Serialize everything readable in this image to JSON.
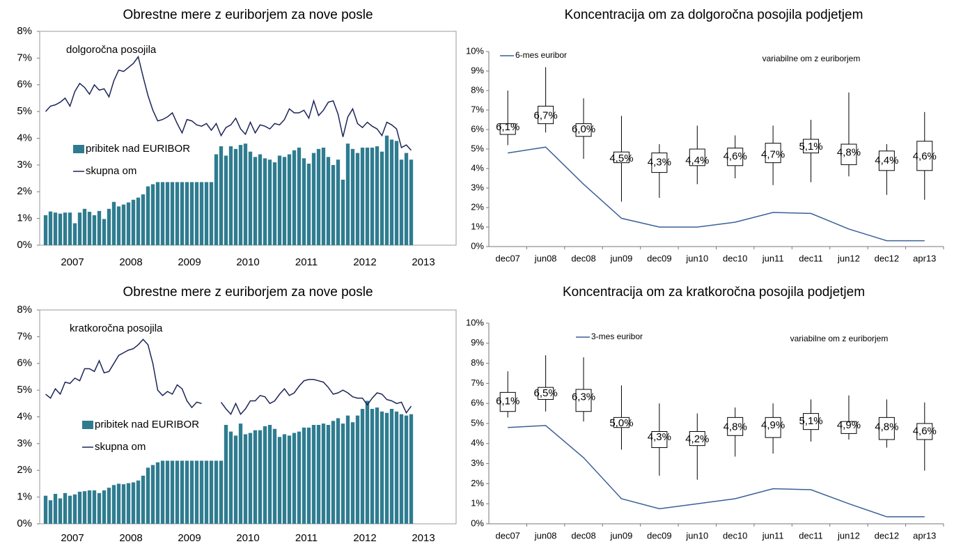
{
  "chart_data": [
    {
      "type": "combo",
      "title": "Obrestne mere z euriborjem za nove posle",
      "annotation": "dolgoročna posojila",
      "categories": [
        null,
        null,
        null,
        null,
        null,
        null,
        "2007",
        null,
        null,
        null,
        null,
        null,
        null,
        null,
        null,
        null,
        null,
        null,
        "2008",
        null,
        null,
        null,
        null,
        null,
        null,
        null,
        null,
        null,
        null,
        null,
        "2009",
        null,
        null,
        null,
        null,
        null,
        null,
        null,
        null,
        null,
        null,
        null,
        "2010",
        null,
        null,
        null,
        null,
        null,
        null,
        null,
        null,
        null,
        null,
        null,
        "2011",
        null,
        null,
        null,
        null,
        null,
        null,
        null,
        null,
        null,
        null,
        null,
        "2012",
        null,
        null,
        null,
        null,
        null,
        null,
        null,
        null,
        null,
        null,
        null,
        "2013",
        null,
        null,
        null,
        null,
        null
      ],
      "series": [
        {
          "name": "pribitek nad EURIBOR",
          "type": "bar",
          "color": "#2f7c90",
          "values": [
            1.12,
            1.26,
            1.22,
            1.18,
            1.22,
            1.22,
            0.82,
            1.22,
            1.36,
            1.25,
            1.12,
            1.28,
            0.98,
            1.36,
            1.62,
            1.45,
            1.52,
            1.6,
            1.7,
            1.78,
            1.9,
            2.2,
            2.28,
            2.36,
            2.36,
            2.36,
            2.36,
            2.36,
            2.36,
            2.36,
            2.36,
            2.36,
            2.36,
            2.36,
            2.36,
            3.4,
            3.7,
            3.35,
            3.7,
            3.6,
            3.75,
            3.8,
            3.5,
            3.3,
            3.4,
            3.25,
            3.2,
            3.1,
            3.35,
            3.3,
            3.4,
            3.55,
            3.65,
            3.25,
            3.05,
            3.45,
            3.6,
            3.65,
            3.3,
            3.0,
            3.2,
            2.45,
            3.8,
            3.6,
            3.45,
            3.65,
            3.65,
            3.65,
            3.7,
            3.5,
            4.1,
            3.95,
            3.9,
            3.2,
            3.45,
            3.2,
            null,
            null,
            null,
            null,
            null,
            null,
            null,
            null
          ]
        },
        {
          "name": "skupna om",
          "type": "line",
          "color": "#1c2557",
          "values": [
            5.0,
            5.2,
            5.25,
            5.35,
            5.5,
            5.2,
            5.75,
            6.05,
            5.9,
            5.65,
            6.0,
            5.8,
            5.85,
            5.55,
            6.15,
            6.55,
            6.5,
            6.65,
            6.8,
            7.05,
            6.3,
            5.6,
            5.05,
            4.65,
            4.7,
            4.8,
            4.95,
            4.55,
            4.2,
            4.7,
            4.65,
            4.5,
            4.45,
            4.55,
            4.3,
            4.55,
            4.1,
            4.4,
            4.5,
            4.75,
            4.35,
            4.15,
            4.6,
            4.2,
            4.5,
            4.45,
            4.35,
            4.55,
            4.5,
            4.7,
            5.1,
            4.95,
            4.95,
            5.05,
            4.75,
            5.4,
            4.85,
            5.05,
            5.35,
            5.4,
            4.9,
            4.05,
            4.8,
            5.1,
            4.55,
            4.4,
            4.6,
            4.45,
            4.35,
            4.1,
            4.6,
            4.5,
            4.35,
            3.65,
            3.75,
            3.55,
            null,
            null,
            null,
            null,
            null,
            null,
            null,
            null
          ]
        }
      ],
      "ylim": [
        0,
        8
      ],
      "yticks": [
        {
          "value": 0,
          "label": "0%"
        },
        {
          "value": 1,
          "label": "1%"
        },
        {
          "value": 2,
          "label": "2%"
        },
        {
          "value": 3,
          "label": "3%"
        },
        {
          "value": 4,
          "label": "4%"
        },
        {
          "value": 5,
          "label": "5%"
        },
        {
          "value": 6,
          "label": "6%"
        },
        {
          "value": 7,
          "label": "7%"
        },
        {
          "value": 8,
          "label": "8%"
        }
      ]
    },
    {
      "type": "box",
      "title": "Koncentracija om za dolgoročna posojila podjetjem",
      "annotation": "variabilne om z euriborjem",
      "categories": [
        "dec07",
        "jun08",
        "dec08",
        "jun09",
        "dec09",
        "jun10",
        "dec10",
        "jun11",
        "dec11",
        "jun12",
        "dec12",
        "apr13"
      ],
      "series": [
        {
          "name": "6-mes euribor",
          "color": "#3b5f98",
          "values": [
            4.8,
            5.1,
            3.2,
            1.45,
            1.0,
            1.0,
            1.25,
            1.75,
            1.7,
            0.9,
            0.3,
            0.3
          ]
        }
      ],
      "boxes": {
        "whisker_low": [
          5.2,
          5.85,
          4.5,
          2.3,
          2.5,
          3.2,
          3.5,
          3.15,
          3.3,
          3.6,
          2.65,
          2.4
        ],
        "box_low": [
          5.75,
          6.3,
          5.65,
          4.3,
          3.8,
          4.15,
          4.15,
          4.3,
          4.8,
          4.2,
          3.9,
          3.9
        ],
        "box_high": [
          6.3,
          7.2,
          6.3,
          4.85,
          4.8,
          5.0,
          5.05,
          5.3,
          5.5,
          5.25,
          4.9,
          5.4
        ],
        "whisker_high": [
          8.0,
          9.2,
          7.6,
          6.7,
          5.25,
          6.2,
          5.7,
          6.2,
          6.5,
          7.9,
          5.25,
          6.9
        ],
        "values": [
          6.1,
          6.7,
          6.0,
          4.5,
          4.3,
          4.4,
          4.6,
          4.7,
          5.1,
          4.8,
          4.4,
          4.6
        ],
        "value_labels": [
          "6,1%",
          "6,7%",
          "6,0%",
          "4,5%",
          "4,3%",
          "4,4%",
          "4,6%",
          "4,7%",
          "5,1%",
          "4,8%",
          "4,4%",
          "4,6%"
        ]
      },
      "ylim": [
        0,
        10
      ],
      "yticks": [
        {
          "value": 0,
          "label": "0%"
        },
        {
          "value": 1,
          "label": "1%"
        },
        {
          "value": 2,
          "label": "2%"
        },
        {
          "value": 3,
          "label": "3%"
        },
        {
          "value": 4,
          "label": "4%"
        },
        {
          "value": 5,
          "label": "5%"
        },
        {
          "value": 6,
          "label": "6%"
        },
        {
          "value": 7,
          "label": "7%"
        },
        {
          "value": 8,
          "label": "8%"
        },
        {
          "value": 9,
          "label": "9%"
        },
        {
          "value": 10,
          "label": "10%"
        }
      ]
    },
    {
      "type": "combo",
      "title": "Obrestne mere z euriborjem za nove posle",
      "annotation": "kratkoročna posojila",
      "categories": [
        null,
        null,
        null,
        null,
        null,
        null,
        "2007",
        null,
        null,
        null,
        null,
        null,
        null,
        null,
        null,
        null,
        null,
        null,
        "2008",
        null,
        null,
        null,
        null,
        null,
        null,
        null,
        null,
        null,
        null,
        null,
        "2009",
        null,
        null,
        null,
        null,
        null,
        null,
        null,
        null,
        null,
        null,
        null,
        "2010",
        null,
        null,
        null,
        null,
        null,
        null,
        null,
        null,
        null,
        null,
        null,
        "2011",
        null,
        null,
        null,
        null,
        null,
        null,
        null,
        null,
        null,
        null,
        null,
        "2012",
        null,
        null,
        null,
        null,
        null,
        null,
        null,
        null,
        null,
        null,
        null,
        "2013",
        null,
        null,
        null,
        null,
        null
      ],
      "series": [
        {
          "name": "pribitek nad EURIBOR",
          "type": "bar",
          "color": "#2f7c90",
          "values": [
            1.05,
            0.88,
            1.12,
            0.95,
            1.15,
            1.05,
            1.1,
            1.2,
            1.22,
            1.25,
            1.25,
            1.15,
            1.25,
            1.35,
            1.45,
            1.5,
            1.48,
            1.52,
            1.55,
            1.62,
            1.8,
            2.1,
            2.2,
            2.3,
            2.36,
            2.36,
            2.36,
            2.36,
            2.36,
            2.36,
            2.36,
            2.36,
            2.36,
            2.36,
            2.36,
            2.36,
            2.36,
            3.7,
            3.45,
            3.3,
            3.75,
            3.35,
            3.4,
            3.5,
            3.5,
            3.65,
            3.7,
            3.55,
            3.25,
            3.35,
            3.3,
            3.4,
            3.45,
            3.6,
            3.6,
            3.7,
            3.7,
            3.75,
            3.7,
            3.85,
            3.95,
            3.75,
            4.05,
            3.8,
            4.05,
            4.3,
            4.6,
            4.3,
            4.35,
            4.2,
            4.15,
            4.3,
            4.2,
            4.1,
            4.05,
            4.1,
            null,
            null,
            null,
            null,
            null,
            null,
            null,
            null
          ]
        },
        {
          "name": "skupna om",
          "type": "line",
          "color": "#1c2557",
          "values": [
            4.85,
            4.7,
            5.05,
            4.85,
            5.3,
            5.25,
            5.45,
            5.35,
            5.8,
            5.8,
            5.7,
            6.1,
            5.65,
            5.7,
            6.0,
            6.3,
            6.4,
            6.5,
            6.55,
            6.7,
            6.9,
            6.7,
            6.0,
            5.0,
            4.8,
            4.95,
            4.85,
            5.2,
            5.05,
            4.6,
            4.35,
            4.55,
            4.5,
            null,
            null,
            null,
            4.55,
            4.3,
            4.1,
            4.5,
            4.1,
            4.3,
            4.6,
            4.6,
            4.8,
            4.75,
            4.5,
            4.6,
            4.85,
            5.05,
            4.8,
            4.9,
            5.15,
            5.35,
            5.4,
            5.4,
            5.35,
            5.3,
            5.1,
            4.85,
            4.9,
            5.0,
            4.9,
            4.75,
            4.7,
            4.7,
            4.45,
            4.7,
            4.9,
            4.85,
            4.65,
            4.6,
            4.5,
            4.55,
            4.15,
            4.4,
            null,
            null,
            null,
            null,
            null,
            null,
            null,
            null
          ]
        }
      ],
      "ylim": [
        0,
        8
      ],
      "yticks": [
        {
          "value": 0,
          "label": "0%"
        },
        {
          "value": 1,
          "label": "1%"
        },
        {
          "value": 2,
          "label": "2%"
        },
        {
          "value": 3,
          "label": "3%"
        },
        {
          "value": 4,
          "label": "4%"
        },
        {
          "value": 5,
          "label": "5%"
        },
        {
          "value": 6,
          "label": "6%"
        },
        {
          "value": 7,
          "label": "7%"
        },
        {
          "value": 8,
          "label": "8%"
        }
      ]
    },
    {
      "type": "box",
      "title": "Koncentracija om za kratkoročna posojila podjetjem",
      "annotation": "variabilne om z euriborjem",
      "categories": [
        "dec07",
        "jun08",
        "dec08",
        "jun09",
        "dec09",
        "jun10",
        "dec10",
        "jun11",
        "dec11",
        "jun12",
        "dec12",
        "apr13"
      ],
      "series": [
        {
          "name": "3-mes euribor",
          "color": "#3b5f98",
          "values": [
            4.8,
            4.9,
            3.3,
            1.25,
            0.75,
            1.0,
            1.25,
            1.75,
            1.7,
            1.0,
            0.35,
            0.35
          ]
        }
      ],
      "boxes": {
        "whisker_low": [
          5.3,
          5.6,
          5.1,
          3.7,
          2.4,
          2.2,
          3.35,
          3.5,
          4.1,
          4.2,
          3.8,
          2.65
        ],
        "box_low": [
          5.6,
          6.2,
          5.6,
          4.8,
          3.8,
          3.9,
          4.4,
          4.3,
          4.7,
          4.5,
          4.2,
          4.2
        ],
        "box_high": [
          6.55,
          6.8,
          6.7,
          5.3,
          4.6,
          4.6,
          5.3,
          5.3,
          5.5,
          5.1,
          5.3,
          5.0
        ],
        "whisker_high": [
          7.6,
          8.4,
          8.3,
          6.9,
          6.0,
          5.5,
          5.8,
          6.0,
          6.2,
          6.4,
          6.2,
          6.05
        ],
        "values": [
          6.1,
          6.5,
          6.3,
          5.0,
          4.3,
          4.2,
          4.8,
          4.9,
          5.1,
          4.9,
          4.8,
          4.6
        ],
        "value_labels": [
          "6,1%",
          "6,5%",
          "6,3%",
          "5,0%",
          "4,3%",
          "4,2%",
          "4,8%",
          "4,9%",
          "5,1%",
          "4,9%",
          "4,8%",
          "4,6%"
        ]
      },
      "ylim": [
        0,
        10
      ],
      "yticks": [
        {
          "value": 0,
          "label": "0%"
        },
        {
          "value": 1,
          "label": "1%"
        },
        {
          "value": 2,
          "label": "2%"
        },
        {
          "value": 3,
          "label": "3%"
        },
        {
          "value": 4,
          "label": "4%"
        },
        {
          "value": 5,
          "label": "5%"
        },
        {
          "value": 6,
          "label": "6%"
        },
        {
          "value": 7,
          "label": "7%"
        },
        {
          "value": 8,
          "label": "8%"
        },
        {
          "value": 9,
          "label": "9%"
        },
        {
          "value": 10,
          "label": "10%"
        }
      ]
    }
  ]
}
